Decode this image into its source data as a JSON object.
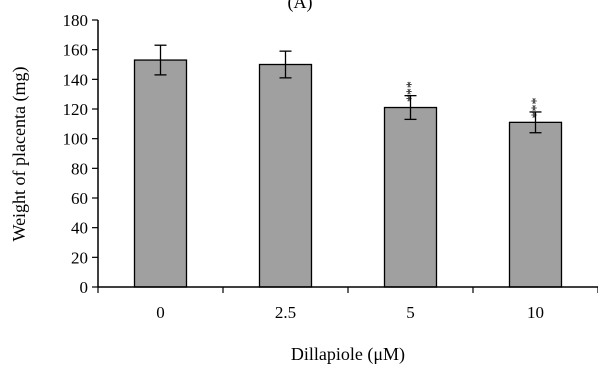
{
  "panel_label": "(A)",
  "chart_data": {
    "type": "bar",
    "categories": [
      "0",
      "2.5",
      "5",
      "10"
    ],
    "series": [
      {
        "values": [
          153,
          150,
          121,
          111
        ],
        "error": [
          10,
          9,
          8,
          7
        ],
        "annotations": [
          "",
          "",
          "***",
          "***"
        ]
      }
    ],
    "xlabel": "Dillapiole (μM)",
    "ylabel": "Weight of placenta (mg)",
    "ylim": [
      0,
      180
    ],
    "yticks": [
      0,
      20,
      40,
      60,
      80,
      100,
      120,
      140,
      160,
      180
    ],
    "grid": false,
    "bar_color": "#a0a0a0",
    "bar_edge_color": "#000000"
  }
}
